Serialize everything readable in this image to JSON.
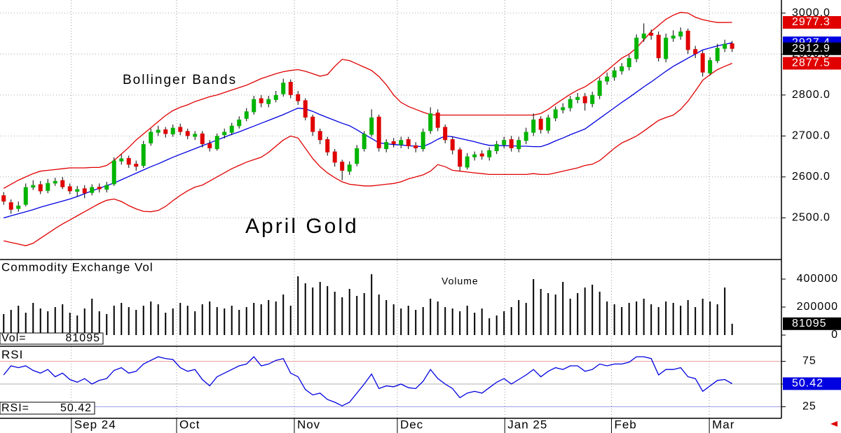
{
  "chart_data": [
    {
      "type": "candlestick",
      "title": "April Gold",
      "annotations": [
        "Bollinger Bands"
      ],
      "up_color": "#00b400",
      "down_color": "#e00000",
      "wick_color": "#000000",
      "open": [
        2555,
        2538,
        2522,
        2532,
        2574,
        2582,
        2566,
        2584,
        2592,
        2577,
        2564,
        2572,
        2561,
        2576,
        2569,
        2582,
        2638,
        2646,
        2632,
        2627,
        2682,
        2708,
        2716,
        2704,
        2722,
        2712,
        2698,
        2706,
        2682,
        2668,
        2702,
        2708,
        2724,
        2742,
        2758,
        2792,
        2778,
        2788,
        2802,
        2832,
        2802,
        2787,
        2747,
        2712,
        2692,
        2662,
        2637,
        2613,
        2632,
        2668,
        2703,
        2747,
        2668,
        2687,
        2678,
        2692,
        2677,
        2668,
        2712,
        2757,
        2722,
        2692,
        2667,
        2623,
        2648,
        2657,
        2648,
        2663,
        2678,
        2692,
        2668,
        2688,
        2708,
        2742,
        2713,
        2743,
        2763,
        2768,
        2788,
        2797,
        2778,
        2798,
        2833,
        2843,
        2858,
        2868,
        2888,
        2938,
        2952,
        2947,
        2888,
        2938,
        2943,
        2957,
        2912,
        2902,
        2853,
        2883,
        2913,
        2926
      ],
      "high": [
        2563,
        2545,
        2540,
        2584,
        2592,
        2590,
        2595,
        2598,
        2600,
        2584,
        2578,
        2580,
        2582,
        2584,
        2588,
        2648,
        2655,
        2652,
        2640,
        2688,
        2718,
        2725,
        2722,
        2728,
        2730,
        2718,
        2712,
        2712,
        2690,
        2706,
        2718,
        2732,
        2748,
        2768,
        2798,
        2800,
        2798,
        2810,
        2840,
        2838,
        2810,
        2792,
        2752,
        2718,
        2698,
        2668,
        2642,
        2638,
        2678,
        2712,
        2765,
        2752,
        2692,
        2695,
        2698,
        2698,
        2685,
        2718,
        2770,
        2765,
        2728,
        2698,
        2672,
        2658,
        2662,
        2665,
        2672,
        2688,
        2698,
        2700,
        2698,
        2720,
        2755,
        2748,
        2752,
        2772,
        2780,
        2798,
        2805,
        2805,
        2808,
        2842,
        2855,
        2868,
        2878,
        2898,
        2948,
        2975,
        2960,
        2955,
        2950,
        2958,
        2965,
        2962,
        2920,
        2908,
        2892,
        2925,
        2935,
        2932
      ],
      "low": [
        2532,
        2510,
        2515,
        2528,
        2568,
        2558,
        2560,
        2578,
        2570,
        2558,
        2552,
        2548,
        2555,
        2562,
        2562,
        2578,
        2630,
        2622,
        2615,
        2622,
        2676,
        2700,
        2696,
        2698,
        2702,
        2692,
        2690,
        2672,
        2662,
        2664,
        2694,
        2702,
        2718,
        2736,
        2752,
        2770,
        2770,
        2782,
        2796,
        2792,
        2776,
        2738,
        2700,
        2680,
        2652,
        2625,
        2592,
        2605,
        2626,
        2662,
        2698,
        2662,
        2660,
        2672,
        2670,
        2668,
        2660,
        2662,
        2705,
        2712,
        2682,
        2655,
        2615,
        2618,
        2640,
        2642,
        2640,
        2656,
        2670,
        2662,
        2660,
        2680,
        2700,
        2706,
        2706,
        2736,
        2755,
        2760,
        2780,
        2762,
        2770,
        2790,
        2825,
        2835,
        2850,
        2860,
        2880,
        2930,
        2935,
        2882,
        2880,
        2930,
        2935,
        2900,
        2890,
        2845,
        2848,
        2878,
        2905,
        2905
      ],
      "close": [
        2540,
        2520,
        2530,
        2575,
        2580,
        2565,
        2585,
        2590,
        2575,
        2565,
        2570,
        2560,
        2575,
        2570,
        2580,
        2640,
        2645,
        2630,
        2625,
        2680,
        2710,
        2715,
        2705,
        2720,
        2710,
        2700,
        2705,
        2680,
        2670,
        2700,
        2710,
        2725,
        2740,
        2760,
        2790,
        2780,
        2790,
        2800,
        2830,
        2800,
        2785,
        2745,
        2710,
        2690,
        2660,
        2635,
        2615,
        2630,
        2670,
        2705,
        2745,
        2670,
        2685,
        2680,
        2690,
        2675,
        2670,
        2710,
        2755,
        2720,
        2690,
        2665,
        2625,
        2650,
        2655,
        2650,
        2665,
        2680,
        2690,
        2670,
        2690,
        2710,
        2740,
        2715,
        2745,
        2765,
        2770,
        2790,
        2795,
        2780,
        2800,
        2835,
        2845,
        2860,
        2870,
        2890,
        2940,
        2950,
        2945,
        2890,
        2940,
        2945,
        2955,
        2910,
        2900,
        2855,
        2885,
        2915,
        2925,
        2912.9
      ],
      "close_tag_color": "#000000",
      "bands": [
        {
          "color": "#e00000",
          "values": [
            2572,
            2582,
            2592,
            2600,
            2608,
            2614,
            2616,
            2618,
            2620,
            2622,
            2622,
            2622,
            2623,
            2623,
            2628,
            2640,
            2656,
            2672,
            2690,
            2705,
            2720,
            2735,
            2750,
            2762,
            2770,
            2776,
            2784,
            2790,
            2796,
            2800,
            2806,
            2812,
            2818,
            2824,
            2832,
            2840,
            2846,
            2852,
            2857,
            2860,
            2862,
            2858,
            2852,
            2846,
            2850,
            2870,
            2887,
            2884,
            2876,
            2868,
            2860,
            2845,
            2825,
            2800,
            2782,
            2772,
            2765,
            2758,
            2752,
            2751,
            2751,
            2751,
            2751,
            2751,
            2751,
            2751,
            2751,
            2751,
            2751,
            2751,
            2751,
            2751,
            2751,
            2755,
            2765,
            2778,
            2790,
            2802,
            2812,
            2820,
            2832,
            2845,
            2860,
            2875,
            2890,
            2900,
            2915,
            2935,
            2955,
            2970,
            2985,
            2995,
            3002,
            3000,
            2990,
            2984,
            2980,
            2977,
            2977,
            2977.3
          ]
        },
        {
          "color": "#0000e0",
          "values": [
            2500,
            2505,
            2510,
            2515,
            2520,
            2526,
            2531,
            2536,
            2541,
            2546,
            2552,
            2559,
            2566,
            2572,
            2579,
            2585,
            2593,
            2601,
            2609,
            2617,
            2625,
            2632,
            2640,
            2648,
            2655,
            2662,
            2669,
            2676,
            2683,
            2690,
            2697,
            2704,
            2710,
            2717,
            2724,
            2731,
            2738,
            2745,
            2752,
            2760,
            2768,
            2766,
            2760,
            2752,
            2745,
            2738,
            2731,
            2725,
            2715,
            2704,
            2694,
            2683,
            2681,
            2679,
            2678,
            2676,
            2675,
            2674,
            2682,
            2692,
            2700,
            2698,
            2694,
            2690,
            2686,
            2681,
            2677,
            2677,
            2676,
            2676,
            2675,
            2675,
            2674,
            2674,
            2680,
            2688,
            2695,
            2703,
            2710,
            2717,
            2730,
            2743,
            2756,
            2769,
            2782,
            2794,
            2807,
            2820,
            2832,
            2845,
            2858,
            2870,
            2880,
            2890,
            2900,
            2910,
            2915,
            2920,
            2924,
            2927.4
          ]
        },
        {
          "color": "#e00000",
          "values": [
            2444,
            2440,
            2436,
            2432,
            2438,
            2450,
            2462,
            2474,
            2485,
            2495,
            2505,
            2515,
            2525,
            2535,
            2543,
            2546,
            2540,
            2530,
            2522,
            2516,
            2515,
            2518,
            2528,
            2542,
            2555,
            2566,
            2575,
            2580,
            2590,
            2600,
            2610,
            2620,
            2628,
            2636,
            2642,
            2648,
            2660,
            2675,
            2690,
            2700,
            2695,
            2670,
            2645,
            2625,
            2610,
            2598,
            2588,
            2582,
            2580,
            2578,
            2578,
            2580,
            2582,
            2584,
            2588,
            2595,
            2600,
            2605,
            2614,
            2630,
            2625,
            2616,
            2614,
            2612,
            2610,
            2608,
            2606,
            2606,
            2606,
            2606,
            2606,
            2606,
            2608,
            2606,
            2606,
            2610,
            2614,
            2618,
            2622,
            2628,
            2631,
            2640,
            2655,
            2670,
            2683,
            2691,
            2700,
            2712,
            2725,
            2738,
            2745,
            2751,
            2765,
            2785,
            2810,
            2836,
            2850,
            2862,
            2870,
            2877.5
          ]
        }
      ],
      "ylim": [
        2400,
        3032
      ],
      "yticks": [
        {
          "value": 3000,
          "label": "3000.0"
        },
        {
          "value": 2900,
          "label": "2900.0"
        },
        {
          "value": 2800,
          "label": "2800.0"
        },
        {
          "value": 2700,
          "label": "2700.0"
        },
        {
          "value": 2600,
          "label": "2600.0"
        },
        {
          "value": 2500,
          "label": "2500.0"
        }
      ],
      "grid": true
    },
    {
      "type": "bar",
      "title": "Commodity Exchange Vol",
      "annotations": [
        "Volume"
      ],
      "readout_label": "Vol=",
      "color": "#000000",
      "values": [
        150000,
        180000,
        210000,
        160000,
        230000,
        190000,
        170000,
        200000,
        220000,
        160000,
        140000,
        190000,
        260000,
        170000,
        150000,
        210000,
        230000,
        200000,
        180000,
        210000,
        240000,
        220000,
        160000,
        190000,
        230000,
        210000,
        170000,
        220000,
        240000,
        200000,
        190000,
        210000,
        180000,
        200000,
        230000,
        220000,
        250000,
        240000,
        290000,
        210000,
        420000,
        370000,
        340000,
        380000,
        350000,
        310000,
        270000,
        330000,
        280000,
        300000,
        435000,
        290000,
        250000,
        220000,
        190000,
        210000,
        180000,
        200000,
        260000,
        240000,
        200000,
        190000,
        170000,
        210000,
        160000,
        190000,
        120000,
        140000,
        170000,
        200000,
        250000,
        230000,
        400000,
        330000,
        300000,
        290000,
        380000,
        260000,
        300000,
        340000,
        360000,
        310000,
        240000,
        220000,
        200000,
        230000,
        240000,
        260000,
        220000,
        200000,
        240000,
        230000,
        210000,
        250000,
        200000,
        260000,
        240000,
        220000,
        340000,
        81095
      ],
      "ylim": [
        -75000,
        535000
      ],
      "yticks": [
        400000,
        200000,
        0
      ]
    },
    {
      "type": "line",
      "title": "RSI",
      "readout_label": "RSI=",
      "color": "#0000e0",
      "values": [
        60,
        70,
        68,
        70,
        65,
        62,
        66,
        58,
        62,
        55,
        52,
        56,
        50,
        54,
        56,
        65,
        68,
        62,
        64,
        72,
        76,
        80,
        78,
        77,
        68,
        64,
        66,
        55,
        48,
        58,
        62,
        66,
        70,
        72,
        80,
        70,
        72,
        76,
        78,
        62,
        58,
        44,
        38,
        40,
        33,
        30,
        26,
        30,
        40,
        50,
        61,
        45,
        48,
        47,
        50,
        46,
        45,
        53,
        66,
        56,
        50,
        45,
        35,
        40,
        42,
        40,
        46,
        52,
        56,
        50,
        55,
        60,
        66,
        58,
        64,
        68,
        66,
        70,
        70,
        64,
        66,
        72,
        70,
        72,
        72,
        74,
        80,
        80,
        78,
        60,
        66,
        66,
        68,
        58,
        56,
        42,
        48,
        54,
        55,
        50.42
      ],
      "ylim": [
        12.3,
        90.8
      ],
      "yticks": [
        75,
        50,
        25
      ],
      "xlim": [
        -0.5,
        105.7
      ],
      "xticks": [
        {
          "value": 9.2,
          "label": "Sep 24"
        },
        {
          "value": 23.5,
          "label": "Oct"
        },
        {
          "value": 39.5,
          "label": "Nov"
        },
        {
          "value": 53.5,
          "label": "Dec"
        },
        {
          "value": 68.1,
          "label": "Jan 25"
        },
        {
          "value": 82.6,
          "label": "Feb"
        },
        {
          "value": 95.9,
          "label": "Mar"
        }
      ]
    }
  ]
}
